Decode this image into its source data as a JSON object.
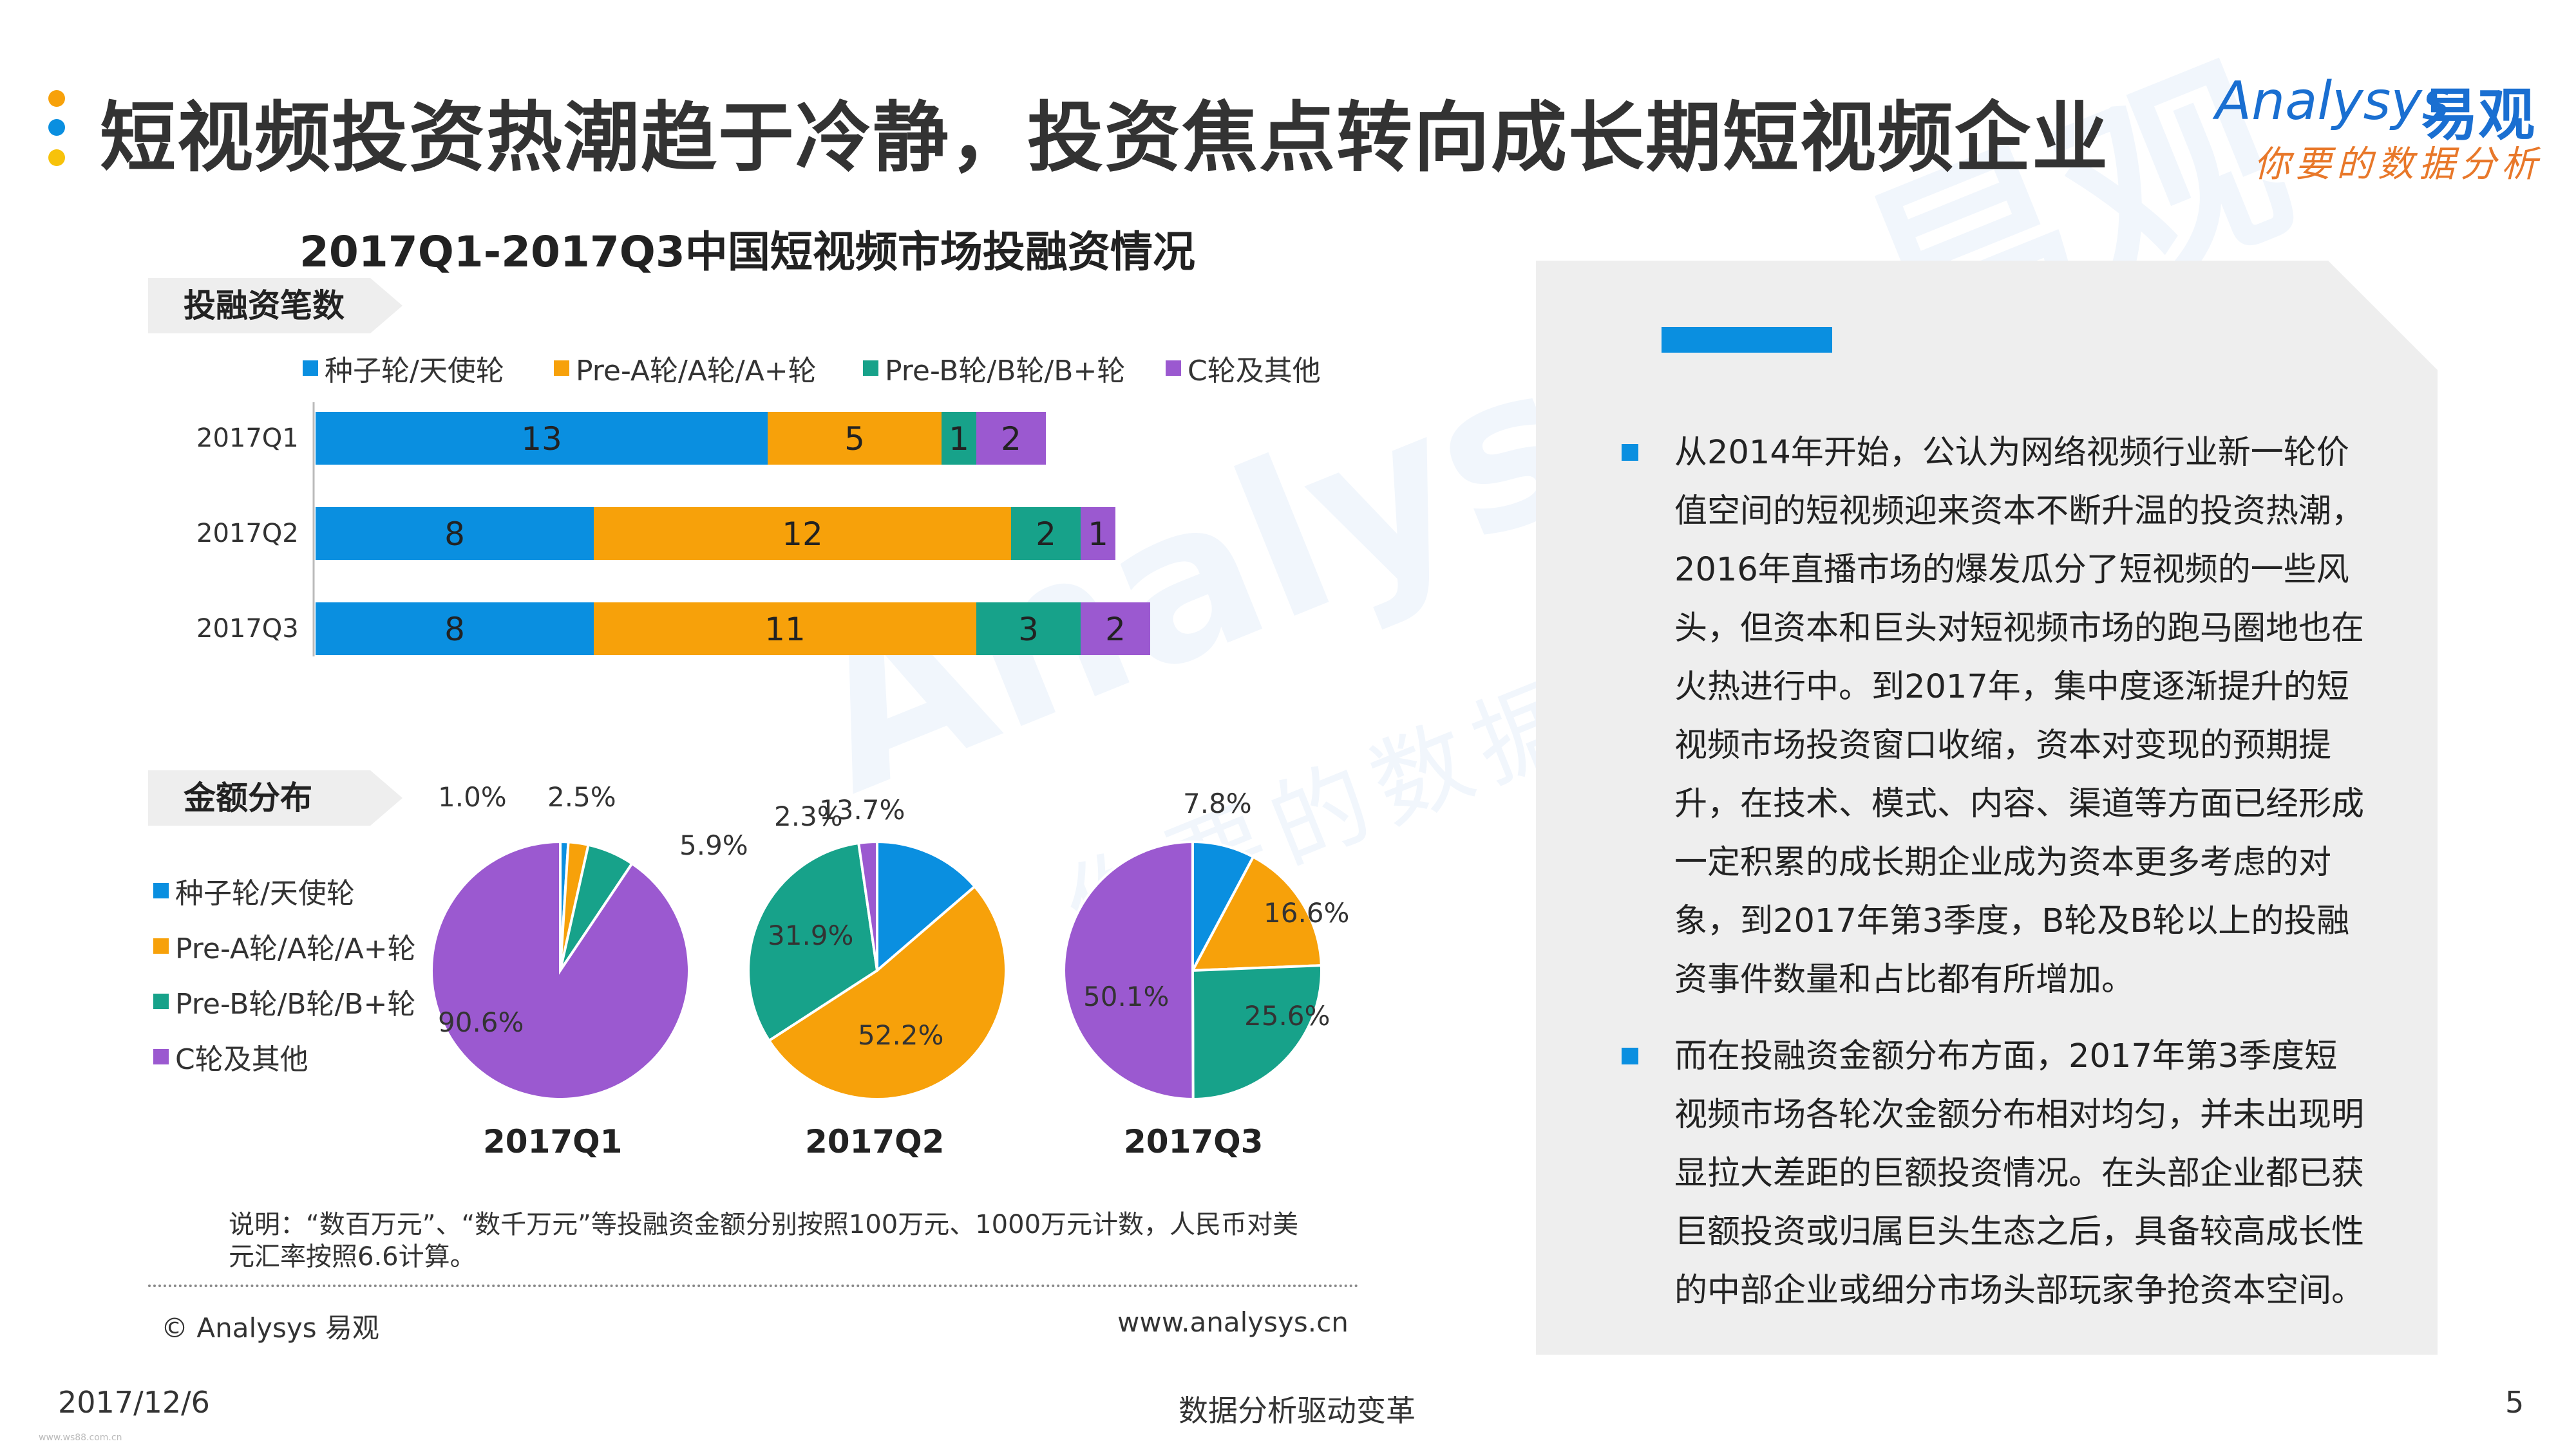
{
  "slide": {
    "title": "短视频投资热潮趋于冷静，投资焦点转向成长期短视频企业",
    "date": "2017/12/6",
    "slogan": "数据分析驱动变革",
    "page_number": "5",
    "copyright": "© Analysys 易观",
    "website": "www.analysys.cn",
    "tiny_footer": "www.ws88.com.cn",
    "note": "说明：“数百万元”、“数千万元”等投融资金额分别按照100万元、1000万元计数，人民币对美元汇率按照6.6计算。",
    "watermark_main": "Analysys 易观",
    "watermark_sub": "你要的数据分析"
  },
  "logo": {
    "name_en": "Analysys",
    "name_cn": "易观",
    "tagline": "你要的数据分析",
    "color": "#1a6fd1"
  },
  "colors": {
    "seed": "#0a8fe0",
    "prea": "#f7a10a",
    "preb": "#17a28a",
    "c": "#9b59d0",
    "accent": "#0a8fe0"
  },
  "chart_data": [
    {
      "type": "bar",
      "orientation": "horizontal-stacked",
      "title": "2017Q1-2017Q3中国短视频市场投融资情况",
      "subtitle": "投融资笔数",
      "categories": [
        "2017Q1",
        "2017Q2",
        "2017Q3"
      ],
      "series": [
        {
          "name": "种子轮/天使轮",
          "color": "#0a8fe0",
          "values": [
            13,
            8,
            8
          ]
        },
        {
          "name": "Pre-A轮/A轮/A+轮",
          "color": "#f7a10a",
          "values": [
            5,
            12,
            11
          ]
        },
        {
          "name": "Pre-B轮/B轮/B+轮",
          "color": "#17a28a",
          "values": [
            1,
            2,
            3
          ]
        },
        {
          "name": "C轮及其他",
          "color": "#9b59d0",
          "values": [
            2,
            1,
            2
          ]
        }
      ],
      "legend": "top",
      "xlim": [
        0,
        24
      ]
    },
    {
      "type": "pie",
      "subtitle": "金额分布",
      "categories": [
        "种子轮/天使轮",
        "Pre-A轮/A轮/A+轮",
        "Pre-B轮/B轮/B+轮",
        "C轮及其他"
      ],
      "pies": [
        {
          "name": "2017Q1",
          "values": [
            1.0,
            2.5,
            5.9,
            90.6
          ],
          "labels": [
            "1.0%",
            "2.5%",
            "5.9%",
            "90.6%"
          ]
        },
        {
          "name": "2017Q2",
          "values": [
            13.7,
            52.2,
            31.9,
            2.3
          ],
          "labels": [
            "13.7%",
            "52.2%",
            "31.9%",
            "2.3%"
          ]
        },
        {
          "name": "2017Q3",
          "values": [
            7.8,
            16.6,
            25.6,
            50.1
          ],
          "labels": [
            "7.8%",
            "16.6%",
            "25.6%",
            "50.1%"
          ]
        }
      ],
      "legend": "left"
    }
  ],
  "panel": {
    "paragraphs": [
      "从2014年开始，公认为网络视频行业新一轮价值空间的短视频迎来资本不断升温的投资热潮，2016年直播市场的爆发瓜分了短视频的一些风头，但资本和巨头对短视频市场的跑马圈地也在火热进行中。到2017年，集中度逐渐提升的短视频市场投资窗口收缩，资本对变现的预期提升，在技术、模式、内容、渠道等方面已经形成一定积累的成长期企业成为资本更多考虑的对象，到2017年第3季度，B轮及B轮以上的投融资事件数量和占比都有所增加。",
      "而在投融资金额分布方面，2017年第3季度短视频市场各轮次金额分布相对均匀，并未出现明显拉大差距的巨额投资情况。在头部企业都已获巨额投资或归属巨头生态之后，具备较高成长性的中部企业或细分市场头部玩家争抢资本空间。"
    ]
  }
}
